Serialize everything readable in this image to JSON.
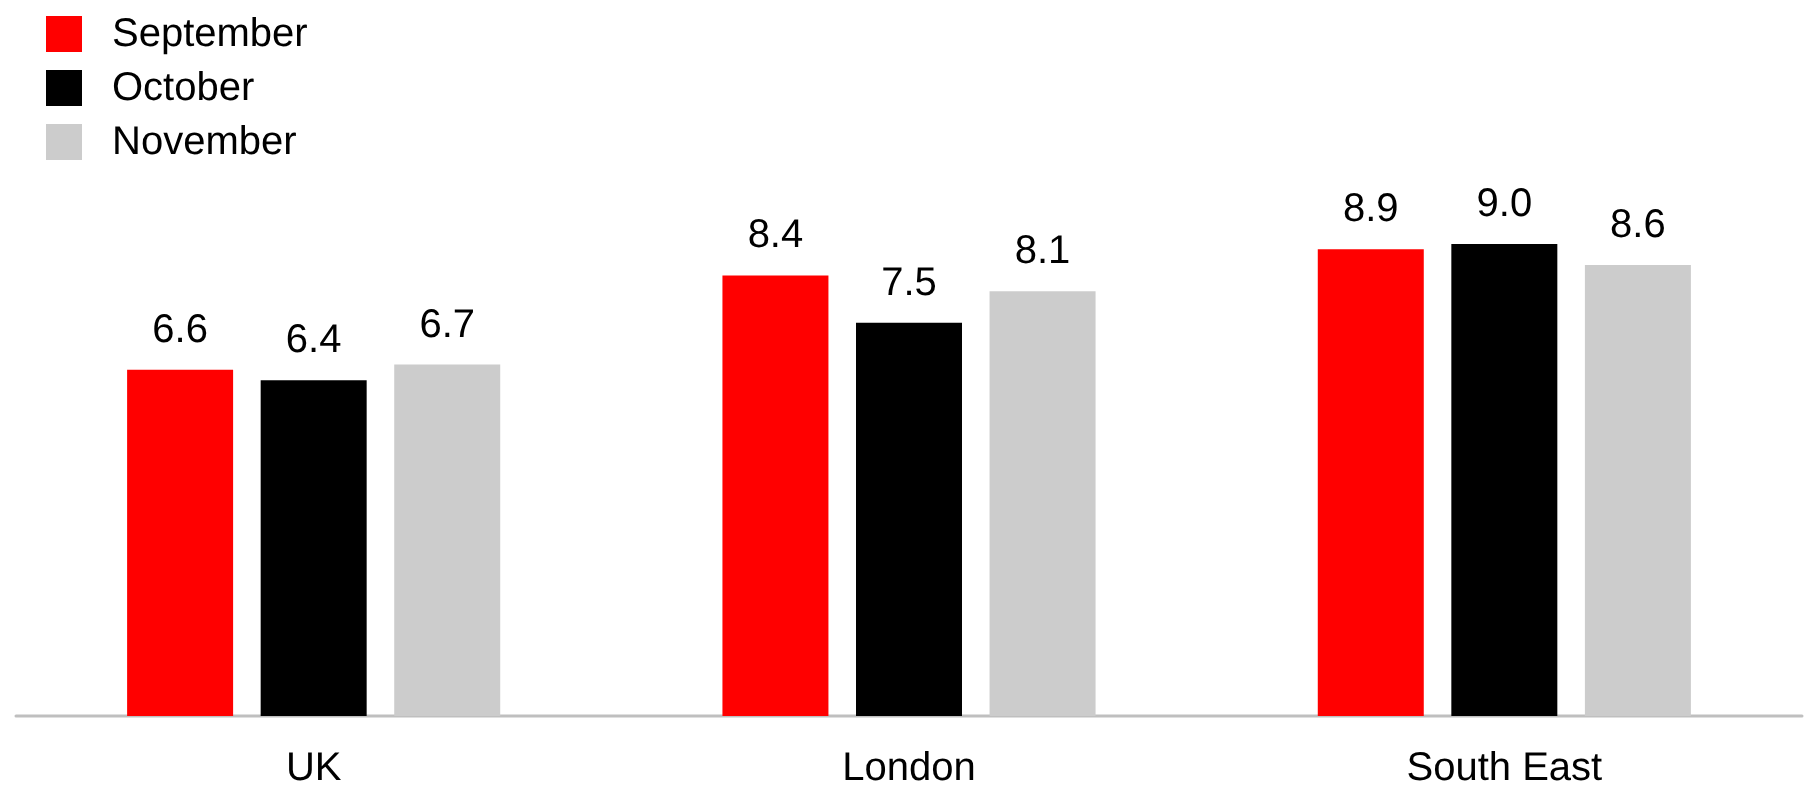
{
  "chart_data": {
    "type": "bar",
    "categories": [
      "UK",
      "London",
      "South East"
    ],
    "series": [
      {
        "name": "September",
        "color": "#ff0000",
        "values": [
          6.6,
          8.4,
          8.9
        ],
        "value_labels": [
          "6.6",
          "8.4",
          "8.9"
        ]
      },
      {
        "name": "October",
        "color": "#000000",
        "values": [
          6.4,
          7.5,
          9.0
        ],
        "value_labels": [
          "6.4",
          "7.5",
          "9.0"
        ]
      },
      {
        "name": "November",
        "color": "#cccccc",
        "values": [
          6.7,
          8.1,
          8.6
        ],
        "value_labels": [
          "6.7",
          "8.1",
          "8.6"
        ]
      }
    ],
    "legend": "top left"
  }
}
